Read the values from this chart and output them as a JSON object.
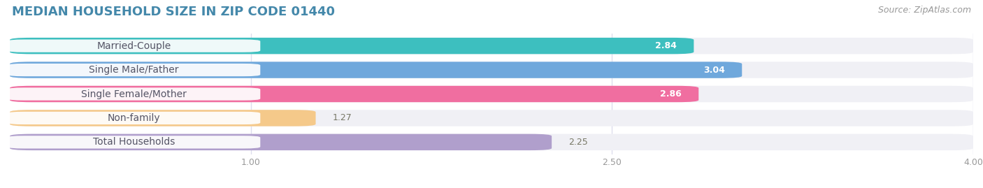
{
  "title": "MEDIAN HOUSEHOLD SIZE IN ZIP CODE 01440",
  "source": "Source: ZipAtlas.com",
  "categories": [
    "Married-Couple",
    "Single Male/Father",
    "Single Female/Mother",
    "Non-family",
    "Total Households"
  ],
  "values": [
    2.84,
    3.04,
    2.86,
    1.27,
    2.25
  ],
  "bar_colors": [
    "#3dbfbf",
    "#6fa8dc",
    "#f06ea0",
    "#f5c98a",
    "#b09fcc"
  ],
  "value_colors": [
    "white",
    "white",
    "white",
    "#888855",
    "#777755"
  ],
  "xlim_min": 0,
  "xlim_max": 4.0,
  "xticks": [
    1.0,
    2.5,
    4.0
  ],
  "xtick_labels": [
    "1.00",
    "2.50",
    "4.00"
  ],
  "title_fontsize": 13,
  "source_fontsize": 9,
  "label_fontsize": 10,
  "value_fontsize": 9,
  "background_color": "#ffffff",
  "bar_bg_color": "#f0f0f5",
  "label_text_color": "#555566",
  "title_color": "#4488aa",
  "grid_color": "#ddddee",
  "bar_height": 0.68
}
